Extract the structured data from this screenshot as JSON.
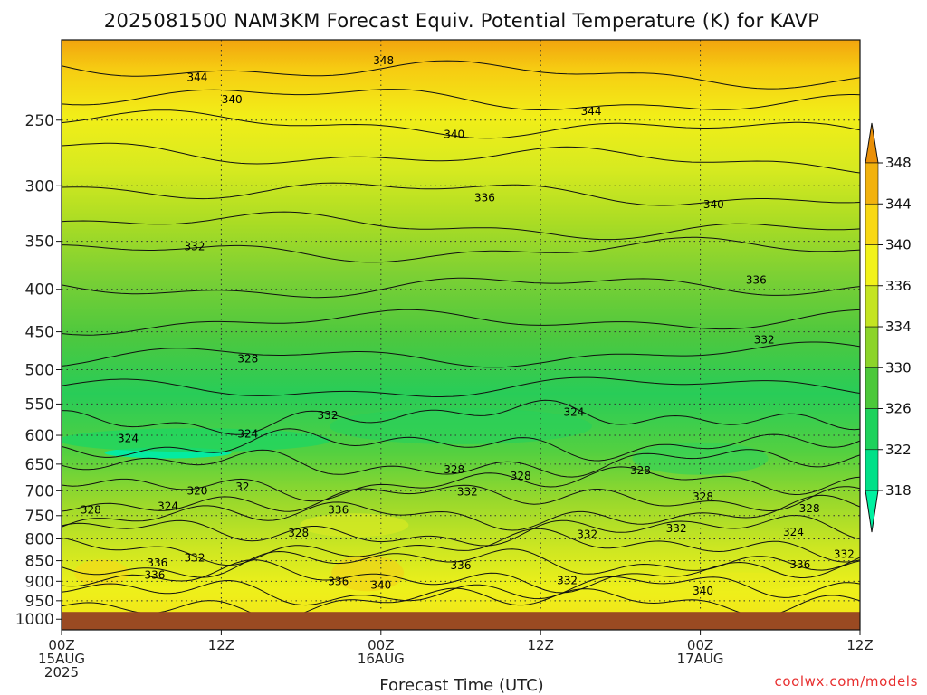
{
  "chart_data": {
    "type": "heatmap",
    "title": "2025081500 NAM3KM Forecast Equiv. Potential Temperature (K) for KAVP",
    "xlabel": "Forecast Time (UTC)",
    "ylabel": "",
    "units": "K",
    "x_hours": [
      0,
      60
    ],
    "x_ticks": [
      {
        "hour": 0,
        "labels": [
          "00Z",
          "15AUG",
          "2025"
        ]
      },
      {
        "hour": 12,
        "labels": [
          "12Z"
        ]
      },
      {
        "hour": 24,
        "labels": [
          "00Z",
          "16AUG"
        ]
      },
      {
        "hour": 36,
        "labels": [
          "12Z"
        ]
      },
      {
        "hour": 48,
        "labels": [
          "00Z",
          "17AUG"
        ]
      },
      {
        "hour": 60,
        "labels": [
          "12Z"
        ]
      }
    ],
    "y_ticks": [
      250,
      300,
      350,
      400,
      450,
      500,
      550,
      600,
      650,
      700,
      750,
      800,
      850,
      900,
      950,
      1000
    ],
    "ylim_hpa": [
      200,
      1030
    ],
    "y_scale": "log",
    "ground_pressure_hpa": 980,
    "ground_color": "#9a4a22",
    "colorbar": {
      "levels": [
        318,
        322,
        326,
        330,
        334,
        336,
        340,
        344,
        348
      ],
      "colors": [
        "#00f0a0",
        "#00e088",
        "#1ed25c",
        "#4cc83a",
        "#8cd42a",
        "#c4e422",
        "#f2f21a",
        "#f8d814",
        "#f2b20e",
        "#ea9008"
      ]
    },
    "contour_labels": [
      {
        "value": "348",
        "hour": 24.2,
        "p": 212
      },
      {
        "value": "344",
        "hour": 10.2,
        "p": 222
      },
      {
        "value": "344",
        "hour": 39.8,
        "p": 244
      },
      {
        "value": "340",
        "hour": 12.8,
        "p": 236
      },
      {
        "value": "340",
        "hour": 29.5,
        "p": 260
      },
      {
        "value": "340",
        "hour": 49.0,
        "p": 316
      },
      {
        "value": "336",
        "hour": 31.8,
        "p": 310
      },
      {
        "value": "336",
        "hour": 52.2,
        "p": 390
      },
      {
        "value": "332",
        "hour": 10.0,
        "p": 355
      },
      {
        "value": "332",
        "hour": 52.8,
        "p": 460
      },
      {
        "value": "328",
        "hour": 14.0,
        "p": 485
      },
      {
        "value": "328",
        "hour": 29.5,
        "p": 660
      },
      {
        "value": "328",
        "hour": 34.5,
        "p": 672
      },
      {
        "value": "328",
        "hour": 43.5,
        "p": 662
      },
      {
        "value": "328",
        "hour": 48.2,
        "p": 712
      },
      {
        "value": "328",
        "hour": 56.2,
        "p": 735
      },
      {
        "value": "328",
        "hour": 2.2,
        "p": 738
      },
      {
        "value": "328",
        "hour": 17.8,
        "p": 787
      },
      {
        "value": "324",
        "hour": 5.0,
        "p": 605
      },
      {
        "value": "324",
        "hour": 14.0,
        "p": 598
      },
      {
        "value": "324",
        "hour": 38.5,
        "p": 563
      },
      {
        "value": "324",
        "hour": 8.0,
        "p": 731
      },
      {
        "value": "324",
        "hour": 55.0,
        "p": 785
      },
      {
        "value": "320",
        "hour": 10.2,
        "p": 700
      },
      {
        "value": "32",
        "hour": 13.6,
        "p": 692
      },
      {
        "value": "332",
        "hour": 20.0,
        "p": 568
      },
      {
        "value": "332",
        "hour": 30.5,
        "p": 702
      },
      {
        "value": "332",
        "hour": 39.5,
        "p": 790
      },
      {
        "value": "332",
        "hour": 46.2,
        "p": 777
      },
      {
        "value": "332",
        "hour": 10.0,
        "p": 843
      },
      {
        "value": "332",
        "hour": 38.0,
        "p": 898
      },
      {
        "value": "332",
        "hour": 58.8,
        "p": 835
      },
      {
        "value": "336",
        "hour": 20.8,
        "p": 738
      },
      {
        "value": "336",
        "hour": 7.2,
        "p": 855
      },
      {
        "value": "336",
        "hour": 7.0,
        "p": 885
      },
      {
        "value": "336",
        "hour": 20.8,
        "p": 900
      },
      {
        "value": "336",
        "hour": 30.0,
        "p": 862
      },
      {
        "value": "336",
        "hour": 55.5,
        "p": 860
      },
      {
        "value": "340",
        "hour": 24.0,
        "p": 910
      },
      {
        "value": "340",
        "hour": 48.2,
        "p": 924
      }
    ]
  },
  "credit": "coolwx.com/models"
}
